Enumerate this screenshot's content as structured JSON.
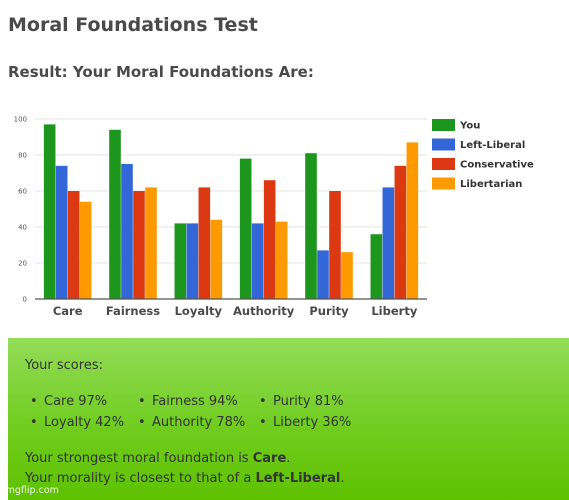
{
  "header": {
    "title": "Moral Foundations Test",
    "result_heading": "Result: Your Moral Foundations Are:"
  },
  "chart_data": {
    "type": "bar",
    "categories": [
      "Care",
      "Fairness",
      "Loyalty",
      "Authority",
      "Purity",
      "Liberty"
    ],
    "series": [
      {
        "name": "You",
        "color": "#1c961c",
        "values": [
          97,
          94,
          42,
          78,
          81,
          36
        ]
      },
      {
        "name": "Left-Liberal",
        "color": "#3366d6",
        "values": [
          74,
          75,
          42,
          42,
          27,
          62
        ]
      },
      {
        "name": "Conservative",
        "color": "#dc3912",
        "values": [
          60,
          60,
          62,
          66,
          60,
          74
        ]
      },
      {
        "name": "Libertarian",
        "color": "#ff9900",
        "values": [
          54,
          62,
          44,
          43,
          26,
          87
        ]
      }
    ],
    "yticks": [
      "0",
      "20",
      "40",
      "60",
      "80",
      "100"
    ],
    "ylim": [
      0,
      100
    ],
    "grid": true,
    "legend_position": "right"
  },
  "scores": {
    "heading": "Your scores:",
    "bullet": "•",
    "items": [
      "Care 97%",
      "Fairness 94%",
      "Purity 81%",
      "Loyalty 42%",
      "Authority 78%",
      "Liberty 36%"
    ]
  },
  "summary": {
    "strongest_prefix": "Your strongest moral foundation is ",
    "strongest_value": "Care",
    "strongest_suffix": ".",
    "closest_prefix": "Your morality is closest to that of a ",
    "closest_value": "Left-Liberal",
    "closest_suffix": "."
  },
  "watermark": "imgflip.com"
}
